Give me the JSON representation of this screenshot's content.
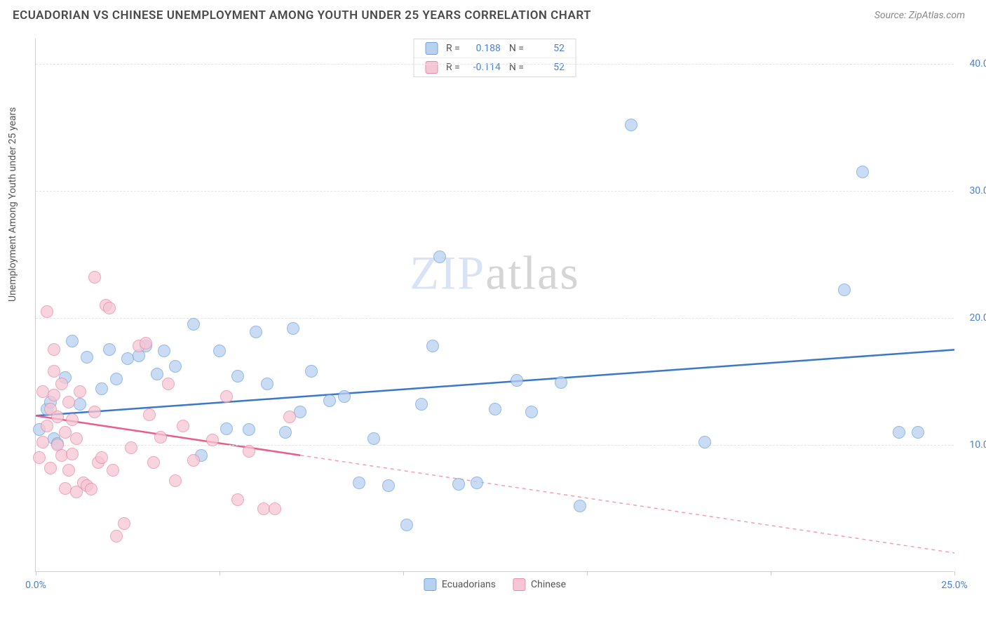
{
  "header": {
    "title": "ECUADORIAN VS CHINESE UNEMPLOYMENT AMONG YOUTH UNDER 25 YEARS CORRELATION CHART",
    "source": "Source: ZipAtlas.com"
  },
  "chart": {
    "type": "scatter",
    "ylabel": "Unemployment Among Youth under 25 years",
    "xlim": [
      0,
      25
    ],
    "ylim": [
      0,
      42
    ],
    "x_ticks": [
      {
        "pos": 0,
        "label": "0.0%"
      },
      {
        "pos": 5
      },
      {
        "pos": 10
      },
      {
        "pos": 15
      },
      {
        "pos": 20
      },
      {
        "pos": 25,
        "label": "25.0%"
      }
    ],
    "y_ticks": [
      {
        "pos": 10,
        "label": "10.0%"
      },
      {
        "pos": 20,
        "label": "20.0%"
      },
      {
        "pos": 30,
        "label": "30.0%"
      },
      {
        "pos": 40,
        "label": "40.0%"
      }
    ],
    "watermark": {
      "left": "ZIP",
      "right": "atlas"
    },
    "series": [
      {
        "name": "Ecuadorians",
        "fill": "#b7d1f0",
        "stroke": "#6fa3dd",
        "line_color": "#3b78c9",
        "r_value": "0.188",
        "n_value": "52",
        "trend": {
          "x1": 0,
          "y1": 12.3,
          "x2": 25,
          "y2": 17.5,
          "solid_to_x": 25
        },
        "points": [
          [
            0.1,
            11.2
          ],
          [
            0.3,
            12.8
          ],
          [
            0.4,
            13.4
          ],
          [
            0.5,
            10.5
          ],
          [
            0.6,
            10.1
          ],
          [
            0.8,
            15.3
          ],
          [
            1.0,
            18.2
          ],
          [
            1.2,
            13.2
          ],
          [
            1.4,
            16.9
          ],
          [
            1.8,
            14.4
          ],
          [
            2.0,
            17.5
          ],
          [
            2.2,
            15.2
          ],
          [
            2.5,
            16.8
          ],
          [
            2.8,
            17.0
          ],
          [
            3.0,
            17.8
          ],
          [
            3.3,
            15.6
          ],
          [
            3.5,
            17.4
          ],
          [
            3.8,
            16.2
          ],
          [
            4.3,
            19.5
          ],
          [
            4.5,
            9.2
          ],
          [
            5.0,
            17.4
          ],
          [
            5.2,
            11.3
          ],
          [
            5.5,
            15.4
          ],
          [
            5.8,
            11.2
          ],
          [
            6.0,
            18.9
          ],
          [
            6.3,
            14.8
          ],
          [
            6.8,
            11.0
          ],
          [
            7.0,
            19.2
          ],
          [
            7.2,
            12.6
          ],
          [
            7.5,
            15.8
          ],
          [
            8.0,
            13.5
          ],
          [
            8.4,
            13.8
          ],
          [
            8.8,
            7.0
          ],
          [
            9.2,
            10.5
          ],
          [
            9.6,
            6.8
          ],
          [
            10.1,
            3.7
          ],
          [
            10.5,
            13.2
          ],
          [
            10.8,
            17.8
          ],
          [
            11.0,
            24.8
          ],
          [
            11.5,
            6.9
          ],
          [
            12.0,
            7.0
          ],
          [
            12.5,
            12.8
          ],
          [
            13.1,
            15.1
          ],
          [
            13.5,
            12.6
          ],
          [
            14.3,
            14.9
          ],
          [
            14.8,
            5.2
          ],
          [
            16.2,
            35.2
          ],
          [
            18.2,
            10.2
          ],
          [
            22.0,
            22.2
          ],
          [
            22.5,
            31.5
          ],
          [
            23.5,
            11.0
          ],
          [
            24.0,
            11.0
          ]
        ]
      },
      {
        "name": "Chinese",
        "fill": "#f6c6d4",
        "stroke": "#e88ba6",
        "line_color": "#ea5d8a",
        "r_value": "-0.114",
        "n_value": "52",
        "trend": {
          "x1": 0,
          "y1": 12.3,
          "x2": 25,
          "y2": 1.5,
          "solid_to_x": 7.2
        },
        "points": [
          [
            0.1,
            9.0
          ],
          [
            0.2,
            10.2
          ],
          [
            0.2,
            14.2
          ],
          [
            0.3,
            11.5
          ],
          [
            0.3,
            20.5
          ],
          [
            0.4,
            12.8
          ],
          [
            0.4,
            8.2
          ],
          [
            0.5,
            13.9
          ],
          [
            0.5,
            15.8
          ],
          [
            0.5,
            17.5
          ],
          [
            0.6,
            10.0
          ],
          [
            0.6,
            12.2
          ],
          [
            0.7,
            9.2
          ],
          [
            0.7,
            14.8
          ],
          [
            0.8,
            6.6
          ],
          [
            0.8,
            11.0
          ],
          [
            0.9,
            8.0
          ],
          [
            0.9,
            13.4
          ],
          [
            1.0,
            9.3
          ],
          [
            1.0,
            12.0
          ],
          [
            1.1,
            6.3
          ],
          [
            1.1,
            10.5
          ],
          [
            1.2,
            14.2
          ],
          [
            1.3,
            7.0
          ],
          [
            1.4,
            6.8
          ],
          [
            1.5,
            6.5
          ],
          [
            1.6,
            12.6
          ],
          [
            1.6,
            23.2
          ],
          [
            1.7,
            8.6
          ],
          [
            1.8,
            9.0
          ],
          [
            1.9,
            21.0
          ],
          [
            2.0,
            20.8
          ],
          [
            2.1,
            8.0
          ],
          [
            2.2,
            2.8
          ],
          [
            2.4,
            3.8
          ],
          [
            2.6,
            9.8
          ],
          [
            2.8,
            17.8
          ],
          [
            3.0,
            18.0
          ],
          [
            3.1,
            12.4
          ],
          [
            3.2,
            8.6
          ],
          [
            3.4,
            10.6
          ],
          [
            3.6,
            14.8
          ],
          [
            3.8,
            7.2
          ],
          [
            4.0,
            11.5
          ],
          [
            4.3,
            8.8
          ],
          [
            4.8,
            10.4
          ],
          [
            5.2,
            13.8
          ],
          [
            5.5,
            5.7
          ],
          [
            5.8,
            9.5
          ],
          [
            6.2,
            5.0
          ],
          [
            6.5,
            5.0
          ],
          [
            6.9,
            12.2
          ]
        ]
      }
    ],
    "legend_bottom": [
      {
        "label": "Ecuadorians",
        "fill": "#b7d1f0",
        "stroke": "#6fa3dd"
      },
      {
        "label": "Chinese",
        "fill": "#f6c6d4",
        "stroke": "#e88ba6"
      }
    ]
  },
  "colors": {
    "axis": "#d0d0d0",
    "grid": "#e5e5e5",
    "tick_text": "#4a7fd8",
    "title_text": "#4a4a4a"
  }
}
